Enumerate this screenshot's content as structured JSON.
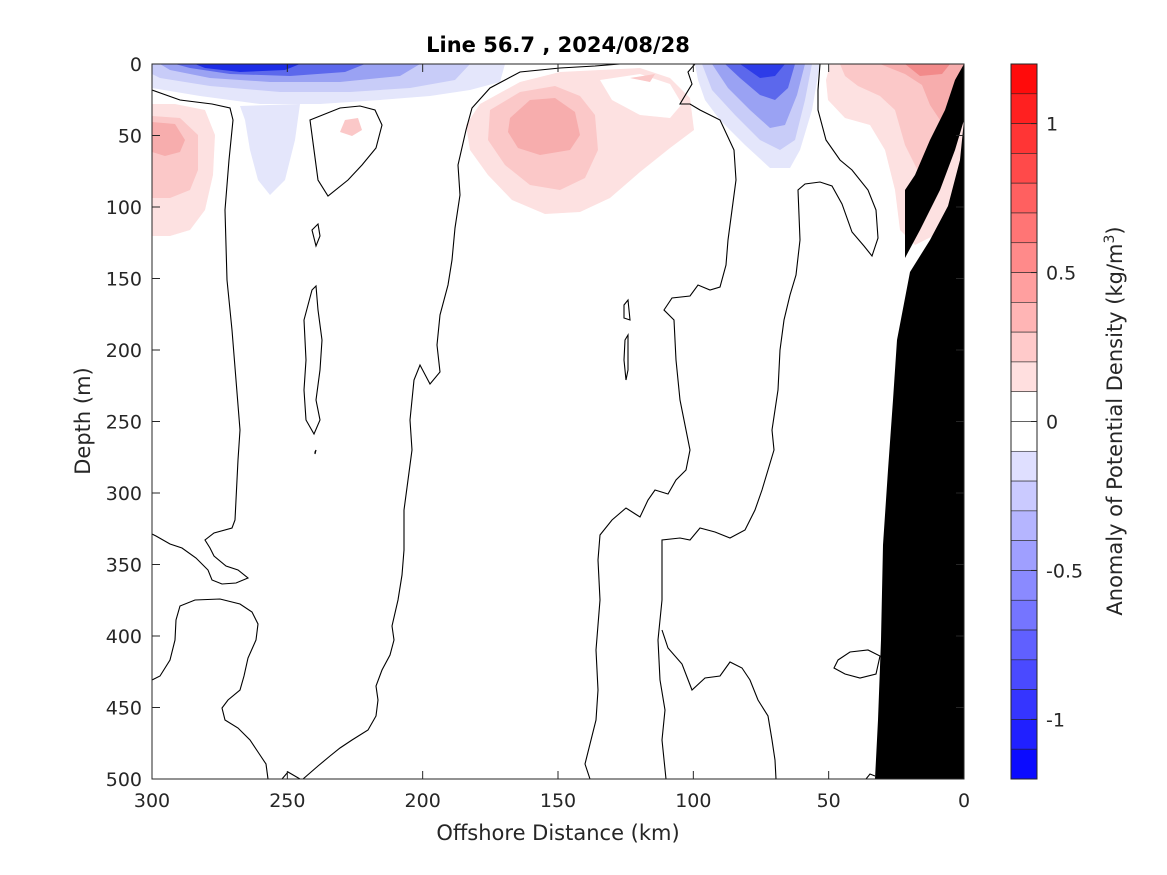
{
  "chart_data": {
    "type": "heatmap",
    "title": "Line 56.7 , 2024/08/28",
    "xlabel": "Offshore Distance (km)",
    "ylabel": "Depth (m)",
    "xlim": [
      300,
      0
    ],
    "ylim": [
      0,
      500
    ],
    "x_reversed": true,
    "y_reversed": true,
    "xticks": [
      300,
      250,
      200,
      150,
      100,
      50,
      0
    ],
    "yticks": [
      0,
      50,
      100,
      150,
      200,
      250,
      300,
      350,
      400,
      450,
      500
    ],
    "colorbar": {
      "label": "Anomaly of Potential Density (kg/m",
      "label_sup": "3",
      "label_tail": ")",
      "clim": [
        -1.2,
        1.2
      ],
      "step": 0.1,
      "ticks": [
        -1,
        -0.5,
        0,
        0.5,
        1
      ],
      "tick_labels": [
        "-1",
        "-0.5",
        "0",
        "0.5",
        "1"
      ]
    },
    "features": [
      {
        "name": "surface low-density anomaly",
        "center_x": 270,
        "center_depth": 5,
        "value": -1.0
      },
      {
        "name": "subsurface high-density anomaly",
        "center_x": 292,
        "center_depth": 50,
        "value": 0.3
      },
      {
        "name": "subsurface high-density anomaly",
        "center_x": 158,
        "center_depth": 50,
        "value": 0.3
      },
      {
        "name": "near-surface low-density anomaly",
        "center_x": 75,
        "center_depth": 10,
        "value": -0.6
      },
      {
        "name": "nearshore high-density anomaly",
        "center_x": 12,
        "center_depth": 15,
        "value": 0.35
      },
      {
        "name": "bathymetry (seafloor)",
        "value": null
      }
    ]
  }
}
